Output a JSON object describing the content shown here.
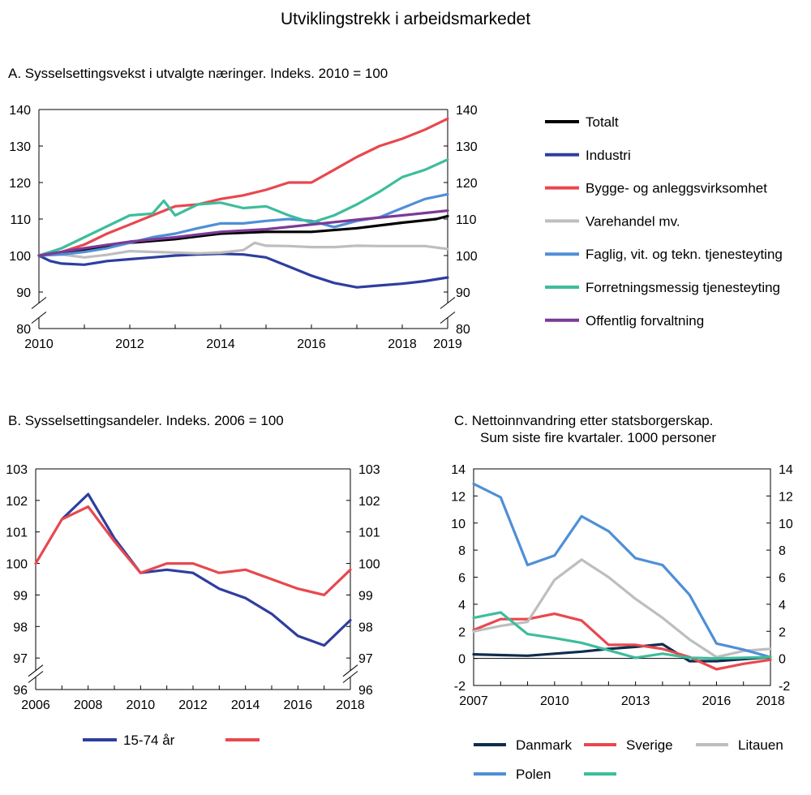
{
  "figure_title": "Utviklingstrekk i arbeidsmarkedet",
  "colors": {
    "Totalt": "#000000",
    "Industri": "#2e3e9e",
    "Bygge": "#e8484e",
    "Varehandel": "#bebebe",
    "Faglig": "#4f8fd6",
    "Forretning": "#3dbd9c",
    "Offentlig": "#7b3a96",
    "Danmark": "#0f2d4e",
    "Sverige": "#e8484e",
    "Litauen": "#bebebe",
    "Polen": "#4f8fd6",
    "Green": "#3dbd9c",
    "B1": "#2e3e9e",
    "B2": "#e8484e"
  },
  "chart_data": [
    {
      "id": "A",
      "type": "line",
      "title": "A.  Sysselsettingsvekst i utvalgte næringer. Indeks. 2010 = 100",
      "xlabel": "",
      "ylabel": "",
      "xlim": [
        2010,
        2019
      ],
      "ylim": [
        80,
        140
      ],
      "yticks": [
        80,
        90,
        100,
        110,
        120,
        130,
        140
      ],
      "xticks": [
        2010,
        2012,
        2014,
        2016,
        2018,
        2019
      ],
      "axis_break": true,
      "series": [
        {
          "name": "Totalt",
          "color_key": "Totalt",
          "x": [
            2010,
            2011,
            2012,
            2013,
            2014,
            2015,
            2016,
            2017,
            2018,
            2018.75,
            2019
          ],
          "y": [
            100,
            101.5,
            103.5,
            104.5,
            106,
            106.5,
            106.5,
            107.5,
            109,
            110,
            110.8
          ]
        },
        {
          "name": "Industri",
          "color_key": "Industri",
          "x": [
            2010,
            2010.25,
            2010.5,
            2011,
            2011.5,
            2012,
            2012.5,
            2013,
            2013.5,
            2014,
            2014.5,
            2015,
            2015.5,
            2016,
            2016.5,
            2017,
            2017.5,
            2018,
            2018.5,
            2019
          ],
          "y": [
            100,
            98.5,
            97.8,
            97.5,
            98.5,
            99,
            99.5,
            100,
            100.3,
            100.5,
            100.3,
            99.5,
            97,
            94.5,
            92.5,
            91.3,
            91.8,
            92.3,
            93,
            94
          ]
        },
        {
          "name": "Bygge- og anleggsvirksomhet",
          "color_key": "Bygge",
          "x": [
            2010,
            2010.5,
            2011,
            2011.5,
            2012,
            2012.5,
            2013,
            2013.5,
            2014,
            2014.5,
            2015,
            2015.5,
            2016,
            2016.5,
            2017,
            2017.5,
            2018,
            2018.5,
            2019
          ],
          "y": [
            100,
            101,
            103,
            106,
            108.5,
            111,
            113.5,
            114,
            115.5,
            116.5,
            118,
            120,
            120,
            123.5,
            127,
            130,
            132,
            134.5,
            137.5
          ]
        },
        {
          "name": "Varehandel mv.",
          "color_key": "Varehandel",
          "x": [
            2010,
            2010.5,
            2011,
            2011.5,
            2012,
            2012.5,
            2013,
            2013.5,
            2014,
            2014.5,
            2014.75,
            2015,
            2015.5,
            2016,
            2016.5,
            2017,
            2017.5,
            2018,
            2018.5,
            2019
          ],
          "y": [
            100,
            100.3,
            99.5,
            100.2,
            101.2,
            101,
            100.8,
            100.6,
            100.8,
            101.5,
            103.5,
            102.7,
            102.6,
            102.3,
            102.3,
            102.7,
            102.6,
            102.6,
            102.6,
            101.8
          ]
        },
        {
          "name": "Faglig, vit. og tekn. tjenesteyting",
          "color_key": "Faglig",
          "x": [
            2010,
            2010.5,
            2011,
            2011.5,
            2012,
            2012.5,
            2013,
            2013.5,
            2014,
            2014.5,
            2015,
            2015.5,
            2016,
            2016.5,
            2017,
            2017.5,
            2018,
            2018.5,
            2019
          ],
          "y": [
            100,
            100.3,
            101,
            102,
            103.5,
            105,
            106,
            107.5,
            108.8,
            108.8,
            109.5,
            110,
            109.5,
            107.8,
            109.5,
            110.5,
            113,
            115.5,
            116.8
          ]
        },
        {
          "name": "Forretningsmessig tjenesteyting",
          "color_key": "Forretning",
          "x": [
            2010,
            2010.5,
            2011,
            2011.5,
            2012,
            2012.5,
            2012.75,
            2013,
            2013.5,
            2014,
            2014.5,
            2015,
            2015.5,
            2016,
            2016.5,
            2017,
            2017.5,
            2018,
            2018.5,
            2019
          ],
          "y": [
            100,
            102,
            105,
            108,
            111,
            111.5,
            115,
            111,
            114,
            114.5,
            113,
            113.5,
            111,
            109,
            111,
            114,
            117.5,
            121.5,
            123.5,
            126.3
          ]
        },
        {
          "name": "Offentlig forvaltning",
          "color_key": "Offentlig",
          "x": [
            2010,
            2011,
            2012,
            2013,
            2014,
            2015,
            2016,
            2017,
            2018,
            2019
          ],
          "y": [
            100,
            102,
            103.8,
            105,
            106.5,
            107.2,
            108.5,
            109.8,
            111,
            112.3
          ]
        }
      ]
    },
    {
      "id": "B",
      "type": "line",
      "title": "B. Sysselsettingsandeler. Indeks. 2006 = 100",
      "xlabel": "",
      "ylabel": "",
      "xlim": [
        2006,
        2018
      ],
      "ylim": [
        96,
        103
      ],
      "yticks": [
        96,
        97,
        98,
        99,
        100,
        101,
        102,
        103
      ],
      "xticks": [
        2006,
        2008,
        2010,
        2012,
        2014,
        2016,
        2018
      ],
      "axis_break": true,
      "series": [
        {
          "name": "15-74 år",
          "color_key": "B1",
          "x": [
            2007,
            2008,
            2009,
            2010,
            2011,
            2012,
            2013,
            2014,
            2015,
            2016,
            2017,
            2018
          ],
          "y": [
            101.4,
            102.2,
            100.8,
            99.7,
            99.8,
            99.7,
            99.2,
            98.9,
            98.4,
            97.7,
            97.4,
            98.2
          ]
        },
        {
          "name": "",
          "color_key": "B2",
          "x": [
            2006,
            2007,
            2008,
            2009,
            2010,
            2011,
            2012,
            2013,
            2014,
            2015,
            2016,
            2017,
            2018
          ],
          "y": [
            100,
            101.4,
            101.8,
            100.7,
            99.7,
            100,
            100,
            99.7,
            99.8,
            99.5,
            99.2,
            99,
            99.8
          ]
        }
      ]
    },
    {
      "id": "C",
      "type": "line",
      "title_line1": "C.  Nettoinnvandring      etter  statsborgerskap.",
      "title_line2": "Sum siste fire kvartaler. 1000 personer",
      "xlabel": "",
      "ylabel": "",
      "xlim": [
        2007,
        2018
      ],
      "ylim": [
        -2,
        14
      ],
      "yticks": [
        -2,
        0,
        2,
        4,
        6,
        8,
        10,
        12,
        14
      ],
      "xticks": [
        2007,
        2010,
        2013,
        2016,
        2018
      ],
      "series": [
        {
          "name": "Danmark",
          "color_key": "Danmark",
          "x": [
            2007,
            2008,
            2009,
            2010,
            2011,
            2012,
            2013,
            2014,
            2015,
            2016,
            2017,
            2018
          ],
          "y": [
            0.3,
            0.25,
            0.2,
            0.35,
            0.5,
            0.7,
            0.85,
            1.05,
            -0.2,
            -0.2,
            -0.05,
            0.1
          ]
        },
        {
          "name": "Sverige",
          "color_key": "Sverige",
          "x": [
            2007,
            2008,
            2009,
            2010,
            2011,
            2012,
            2013,
            2014,
            2015,
            2016,
            2017,
            2018
          ],
          "y": [
            2.1,
            2.9,
            2.9,
            3.3,
            2.8,
            1.0,
            1.0,
            0.7,
            0.1,
            -0.8,
            -0.4,
            -0.1
          ]
        },
        {
          "name": "Litauen",
          "color_key": "Litauen",
          "x": [
            2007,
            2008,
            2009,
            2010,
            2011,
            2012,
            2013,
            2014,
            2015,
            2016,
            2017,
            2018
          ],
          "y": [
            2.0,
            2.4,
            2.7,
            5.8,
            7.3,
            6.0,
            4.4,
            3.0,
            1.4,
            0.1,
            0.55,
            0.7
          ]
        },
        {
          "name": "Polen",
          "color_key": "Polen",
          "x": [
            2007,
            2008,
            2009,
            2010,
            2011,
            2012,
            2013,
            2014,
            2015,
            2016,
            2017,
            2018
          ],
          "y": [
            12.9,
            11.9,
            6.9,
            7.6,
            10.5,
            9.4,
            7.4,
            6.9,
            4.7,
            1.1,
            0.65,
            0.1
          ]
        },
        {
          "name": "",
          "color_key": "Green",
          "x": [
            2007,
            2008,
            2009,
            2010,
            2011,
            2012,
            2013,
            2014,
            2015,
            2016,
            2017,
            2018
          ],
          "y": [
            3.0,
            3.4,
            1.8,
            1.5,
            1.15,
            0.6,
            0.05,
            0.35,
            0.05,
            0.0,
            0.05,
            0.1
          ]
        }
      ]
    }
  ],
  "legend_A": [
    "Totalt",
    "Industri",
    "Bygge- og anleggsvirksomhet",
    "Varehandel mv.",
    "Faglig, vit. og tekn. tjenesteyting",
    "Forretningsmessig tjenesteyting",
    "Offentlig forvaltning"
  ],
  "legend_B": [
    "15-74 år",
    ""
  ],
  "legend_C": [
    "Danmark",
    "Sverige",
    "Litauen",
    "Polen",
    ""
  ]
}
